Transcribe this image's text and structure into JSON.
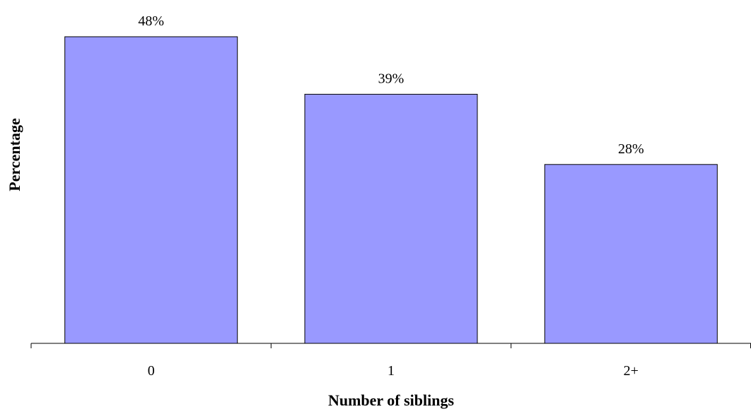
{
  "chart_data": {
    "type": "bar",
    "title": "",
    "xlabel": "Number of siblings",
    "ylabel": "Percentage",
    "categories": [
      "0",
      "1",
      "2+"
    ],
    "values": [
      48,
      39,
      28
    ],
    "data_labels": [
      "48%",
      "39%",
      "28%"
    ],
    "ylim": [
      0,
      48
    ],
    "grid": false,
    "legend": "none",
    "bar_color": "#9999ff",
    "bar_edge_color": "#000000"
  }
}
